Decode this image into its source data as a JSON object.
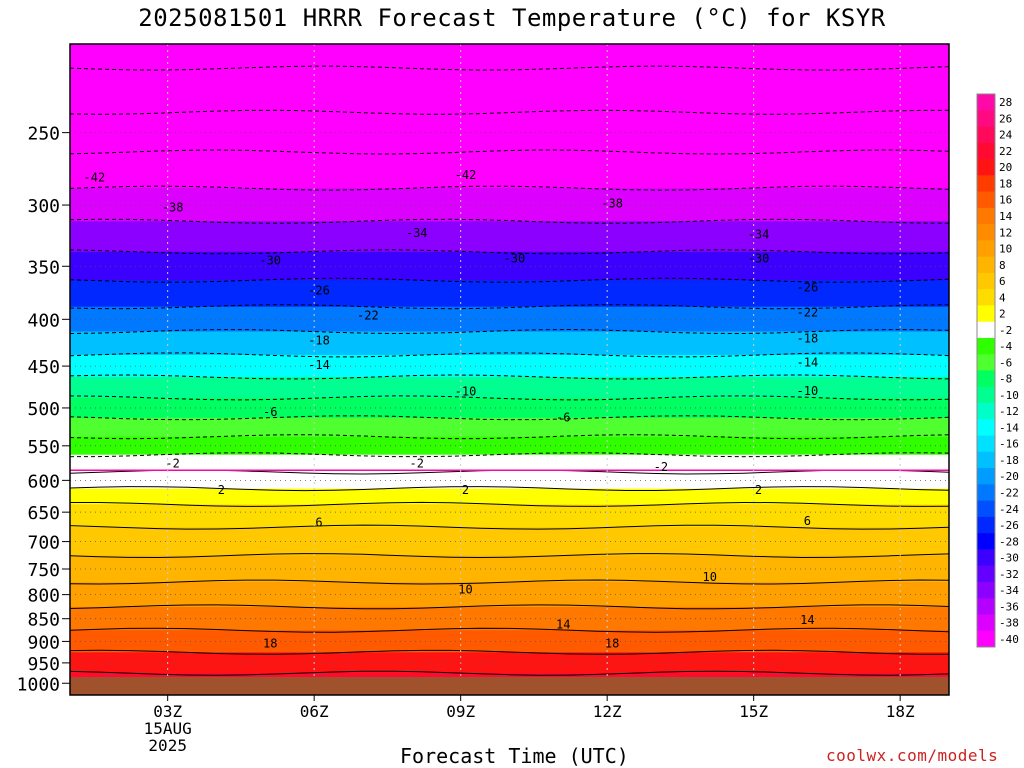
{
  "title": "2025081501 HRRR Forecast Temperature (°C) for KSYR",
  "credit": "coolwx.com/models",
  "chart_data": {
    "type": "heatmap",
    "xlabel": "Forecast Time (UTC)",
    "x_ticks": [
      {
        "time": 3,
        "lines": [
          "03Z",
          "15AUG",
          "2025"
        ]
      },
      {
        "time": 6,
        "lines": [
          "06Z"
        ]
      },
      {
        "time": 9,
        "lines": [
          "09Z"
        ]
      },
      {
        "time": 12,
        "lines": [
          "12Z"
        ]
      },
      {
        "time": 15,
        "lines": [
          "15Z"
        ]
      },
      {
        "time": 18,
        "lines": [
          "18Z"
        ]
      }
    ],
    "x_range": [
      1,
      19
    ],
    "y_axis": "pressure (hPa), log scale, inverted",
    "y_ticks": [
      250,
      300,
      350,
      400,
      450,
      500,
      550,
      600,
      650,
      700,
      750,
      800,
      850,
      900,
      950,
      1000
    ],
    "y_range": [
      200,
      1030
    ],
    "colorbar": {
      "labels": [
        28,
        26,
        24,
        22,
        20,
        18,
        16,
        14,
        12,
        10,
        8,
        6,
        4,
        2,
        -2,
        -4,
        -6,
        -8,
        -10,
        -12,
        -14,
        -16,
        -18,
        -20,
        -22,
        -24,
        -26,
        -28,
        -30,
        -32,
        -34,
        -36,
        -38,
        -40
      ],
      "colors": [
        "#ff0aa8",
        "#ff0a80",
        "#ff0a5a",
        "#ff0a32",
        "#ff1414",
        "#ff3c00",
        "#ff5a00",
        "#ff7800",
        "#ff8c00",
        "#ffa000",
        "#ffb400",
        "#ffc800",
        "#ffdc00",
        "#ffff00",
        "#ffffff",
        "#30ff00",
        "#50ff30",
        "#00ff60",
        "#00ff90",
        "#00ffc8",
        "#00ffff",
        "#00e0ff",
        "#00c0ff",
        "#009cff",
        "#0078ff",
        "#0050ff",
        "#0028ff",
        "#0000ff",
        "#3c00ff",
        "#6400ff",
        "#8c00ff",
        "#b400ff",
        "#dc00ff",
        "#ff00ff"
      ]
    },
    "temperature_profile": [
      {
        "pressure": 200,
        "temp": -48
      },
      {
        "pressure": 225,
        "temp": -47
      },
      {
        "pressure": 250,
        "temp": -44
      },
      {
        "pressure": 275,
        "temp": -42
      },
      {
        "pressure": 300,
        "temp": -38
      },
      {
        "pressure": 325,
        "temp": -34
      },
      {
        "pressure": 350,
        "temp": -30
      },
      {
        "pressure": 375,
        "temp": -26
      },
      {
        "pressure": 400,
        "temp": -22
      },
      {
        "pressure": 425,
        "temp": -18
      },
      {
        "pressure": 450,
        "temp": -14
      },
      {
        "pressure": 475,
        "temp": -10
      },
      {
        "pressure": 500,
        "temp": -7
      },
      {
        "pressure": 525,
        "temp": -5
      },
      {
        "pressure": 550,
        "temp": -3
      },
      {
        "pressure": 575,
        "temp": -1
      },
      {
        "pressure": 600,
        "temp": 1
      },
      {
        "pressure": 625,
        "temp": 3
      },
      {
        "pressure": 650,
        "temp": 5
      },
      {
        "pressure": 700,
        "temp": 7
      },
      {
        "pressure": 750,
        "temp": 9
      },
      {
        "pressure": 800,
        "temp": 11
      },
      {
        "pressure": 850,
        "temp": 14
      },
      {
        "pressure": 900,
        "temp": 17
      },
      {
        "pressure": 950,
        "temp": 20
      },
      {
        "pressure": 1000,
        "temp": 23
      }
    ],
    "contour_labels": [
      {
        "label": "-42",
        "time": 1.5,
        "pressure": 280
      },
      {
        "label": "-42",
        "time": 9.1,
        "pressure": 278
      },
      {
        "label": "-38",
        "time": 3.1,
        "pressure": 302
      },
      {
        "label": "-38",
        "time": 12.1,
        "pressure": 299
      },
      {
        "label": "-34",
        "time": 8.1,
        "pressure": 322
      },
      {
        "label": "-34",
        "time": 15.1,
        "pressure": 323
      },
      {
        "label": "-30",
        "time": 5.1,
        "pressure": 345
      },
      {
        "label": "-30",
        "time": 10.1,
        "pressure": 343
      },
      {
        "label": "-30",
        "time": 15.1,
        "pressure": 343
      },
      {
        "label": "-26",
        "time": 6.1,
        "pressure": 372
      },
      {
        "label": "-26",
        "time": 16.1,
        "pressure": 369
      },
      {
        "label": "-22",
        "time": 7.1,
        "pressure": 396
      },
      {
        "label": "-22",
        "time": 16.1,
        "pressure": 393
      },
      {
        "label": "-18",
        "time": 6.1,
        "pressure": 422
      },
      {
        "label": "-18",
        "time": 16.1,
        "pressure": 420
      },
      {
        "label": "-14",
        "time": 6.1,
        "pressure": 449
      },
      {
        "label": "-14",
        "time": 16.1,
        "pressure": 446
      },
      {
        "label": "-10",
        "time": 9.1,
        "pressure": 480
      },
      {
        "label": "-10",
        "time": 16.1,
        "pressure": 479
      },
      {
        "label": "-6",
        "time": 5.1,
        "pressure": 505
      },
      {
        "label": "-6",
        "time": 11.1,
        "pressure": 512
      },
      {
        "label": "-2",
        "time": 3.1,
        "pressure": 575
      },
      {
        "label": "-2",
        "time": 8.1,
        "pressure": 575
      },
      {
        "label": "-2",
        "time": 13.1,
        "pressure": 580
      },
      {
        "label": "2",
        "time": 4.1,
        "pressure": 615
      },
      {
        "label": "2",
        "time": 9.1,
        "pressure": 615
      },
      {
        "label": "2",
        "time": 15.1,
        "pressure": 615
      },
      {
        "label": "6",
        "time": 6.1,
        "pressure": 667
      },
      {
        "label": "6",
        "time": 16.1,
        "pressure": 665
      },
      {
        "label": "10",
        "time": 9.1,
        "pressure": 790
      },
      {
        "label": "10",
        "time": 14.1,
        "pressure": 765
      },
      {
        "label": "14",
        "time": 11.1,
        "pressure": 862
      },
      {
        "label": "14",
        "time": 16.1,
        "pressure": 853
      },
      {
        "label": "18",
        "time": 5.1,
        "pressure": 905
      },
      {
        "label": "18",
        "time": 12.1,
        "pressure": 905
      }
    ]
  }
}
